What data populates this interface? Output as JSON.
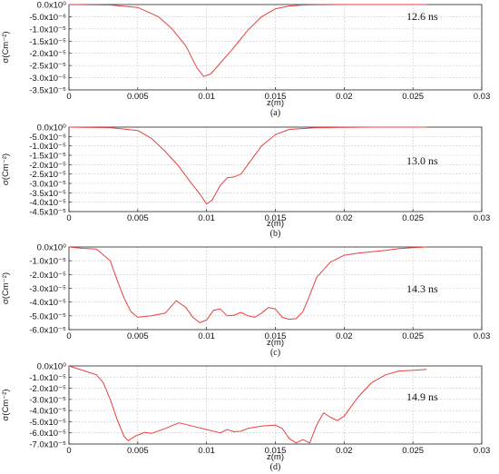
{
  "chart_data": [
    {
      "type": "line",
      "caption": "(a)",
      "annotation": "12.6 ns",
      "ylabel": "σ(Cm⁻²)",
      "xlabel": "z(m)",
      "xlim": [
        0,
        0.03
      ],
      "ylim": [
        -3.5e-05,
        0
      ],
      "x_ticks": [
        "0",
        "0.005",
        "0.01",
        "0.015",
        "0.02",
        "0.025",
        "0.03"
      ],
      "y_ticks": [
        "0.0x10⁰",
        "-5.0x10⁻⁶",
        "-1.0x10⁻⁵",
        "-1.5x10⁻⁵",
        "-2.0x10⁻⁵",
        "-2.5x10⁻⁵",
        "-3.0x10⁻⁵",
        "-3.5x10⁻⁵"
      ],
      "color": "#e8413f",
      "x": [
        0,
        0.003,
        0.005,
        0.0065,
        0.0075,
        0.0085,
        0.0093,
        0.0098,
        0.0103,
        0.011,
        0.012,
        0.013,
        0.014,
        0.015,
        0.016,
        0.017,
        0.018,
        0.02,
        0.022,
        0.024,
        0.026
      ],
      "y": [
        0,
        -2e-07,
        -1.2e-06,
        -5e-06,
        -1e-05,
        -1.7e-05,
        -2.6e-05,
        -2.95e-05,
        -2.85e-05,
        -2.4e-05,
        -1.75e-05,
        -1.05e-05,
        -5e-06,
        -1.8e-06,
        -6e-07,
        -2e-07,
        -1e-07,
        0,
        0,
        0,
        0
      ]
    },
    {
      "type": "line",
      "caption": "(b)",
      "annotation": "13.0 ns",
      "ylabel": "σ(Cm⁻²)",
      "xlabel": "z(m)",
      "xlim": [
        0,
        0.03
      ],
      "ylim": [
        -4.5e-05,
        0
      ],
      "x_ticks": [
        "0",
        "0.005",
        "0.01",
        "0.015",
        "0.02",
        "0.025",
        "0.03"
      ],
      "y_ticks": [
        "0.0x10⁰",
        "-5.0x10⁻⁶",
        "-1.0x10⁻⁵",
        "-1.5x10⁻⁵",
        "-2.0x10⁻⁵",
        "-2.5x10⁻⁵",
        "-3.0x10⁻⁵",
        "-3.5x10⁻⁵",
        "-4.0x10⁻⁵",
        "-4.5x10⁻⁵"
      ],
      "color": "#e8413f",
      "x": [
        0,
        0.003,
        0.005,
        0.006,
        0.007,
        0.008,
        0.0088,
        0.0095,
        0.01,
        0.0104,
        0.011,
        0.0115,
        0.012,
        0.0125,
        0.013,
        0.014,
        0.015,
        0.016,
        0.018,
        0.02,
        0.022,
        0.024,
        0.026
      ],
      "y": [
        0,
        -3e-07,
        -1.8e-06,
        -6e-06,
        -1.3e-05,
        -2.1e-05,
        -2.9e-05,
        -3.55e-05,
        -4.1e-05,
        -3.9e-05,
        -3.1e-05,
        -2.7e-05,
        -2.65e-05,
        -2.5e-05,
        -2e-05,
        -1e-05,
        -4e-06,
        -1.2e-06,
        -3e-07,
        -1e-07,
        0,
        0,
        0
      ]
    },
    {
      "type": "line",
      "caption": "(c)",
      "annotation": "14.3 ns",
      "ylabel": "σ(Cm⁻²)",
      "xlabel": "z(m)",
      "xlim": [
        0,
        0.03
      ],
      "ylim": [
        -6e-05,
        0
      ],
      "x_ticks": [
        "0",
        "0.005",
        "0.01",
        "0.015",
        "0.02",
        "0.025",
        "0.03"
      ],
      "y_ticks": [
        "0.0x10⁰",
        "-1.0x10⁻⁵",
        "-2.0x10⁻⁵",
        "-3.0x10⁻⁵",
        "-4.0x10⁻⁵",
        "-5.0x10⁻⁵",
        "-6.0x10⁻⁵"
      ],
      "color": "#e8413f",
      "x": [
        0,
        0.001,
        0.002,
        0.003,
        0.0035,
        0.004,
        0.0045,
        0.005,
        0.006,
        0.007,
        0.0078,
        0.0085,
        0.009,
        0.0095,
        0.01,
        0.0105,
        0.011,
        0.0115,
        0.012,
        0.0125,
        0.013,
        0.0135,
        0.014,
        0.0145,
        0.015,
        0.0155,
        0.016,
        0.0165,
        0.017,
        0.0175,
        0.018,
        0.019,
        0.02,
        0.021,
        0.022,
        0.023,
        0.024,
        0.025,
        0.026
      ],
      "y": [
        0,
        -1e-06,
        -1.5e-06,
        -1e-05,
        -2.4e-05,
        -3.7e-05,
        -4.7e-05,
        -5.1e-05,
        -5e-05,
        -4.8e-05,
        -3.9e-05,
        -4.4e-05,
        -5.1e-05,
        -5.5e-05,
        -5.3e-05,
        -4.6e-05,
        -4.5e-05,
        -5e-05,
        -4.95e-05,
        -4.75e-05,
        -5e-05,
        -5.1e-05,
        -4.8e-05,
        -4.4e-05,
        -4.5e-05,
        -5.1e-05,
        -5.25e-05,
        -5.2e-05,
        -4.7e-05,
        -3.5e-05,
        -2.2e-05,
        -1.1e-05,
        -6e-06,
        -4.5e-06,
        -3.5e-06,
        -2.5e-06,
        -1.2e-06,
        -5e-07,
        0
      ]
    },
    {
      "type": "line",
      "caption": "(d)",
      "annotation": "14.9 ns",
      "ylabel": "σ(Cm⁻²)",
      "xlabel": "z(m)",
      "xlim": [
        0,
        0.03
      ],
      "ylim": [
        -7e-05,
        0
      ],
      "x_ticks": [
        "0",
        "0.005",
        "0.01",
        "0.015",
        "0.02",
        "0.025",
        "0.03"
      ],
      "y_ticks": [
        "0.0x10⁰",
        "-1.0x10⁻⁵",
        "-2.0x10⁻⁵",
        "-3.0x10⁻⁵",
        "-4.0x10⁻⁵",
        "-5.0x10⁻⁵",
        "-6.0x10⁻⁵",
        "-7.0x10⁻⁵"
      ],
      "color": "#e8413f",
      "x": [
        0,
        0.001,
        0.0015,
        0.002,
        0.0025,
        0.003,
        0.0035,
        0.004,
        0.0043,
        0.0048,
        0.0055,
        0.006,
        0.007,
        0.008,
        0.009,
        0.01,
        0.011,
        0.0115,
        0.012,
        0.0125,
        0.013,
        0.014,
        0.015,
        0.0155,
        0.016,
        0.0165,
        0.017,
        0.0175,
        0.018,
        0.0185,
        0.019,
        0.0195,
        0.02,
        0.021,
        0.022,
        0.023,
        0.024,
        0.025,
        0.026
      ],
      "y": [
        0,
        -4e-06,
        -6e-06,
        -8e-06,
        -1.5e-05,
        -3e-05,
        -4.8e-05,
        -6.3e-05,
        -6.7e-05,
        -6.3e-05,
        -5.95e-05,
        -6.05e-05,
        -5.6e-05,
        -5.1e-05,
        -5.4e-05,
        -5.7e-05,
        -6e-05,
        -5.7e-05,
        -5.9e-05,
        -5.85e-05,
        -5.6e-05,
        -5.4e-05,
        -5.3e-05,
        -5.6e-05,
        -6.5e-05,
        -6.9e-05,
        -6.6e-05,
        -6.9e-05,
        -5.3e-05,
        -4.2e-05,
        -4.6e-05,
        -4.9e-05,
        -4.5e-05,
        -2.8e-05,
        -1.5e-05,
        -8e-06,
        -4.5e-06,
        -4e-06,
        -3e-06
      ]
    }
  ]
}
